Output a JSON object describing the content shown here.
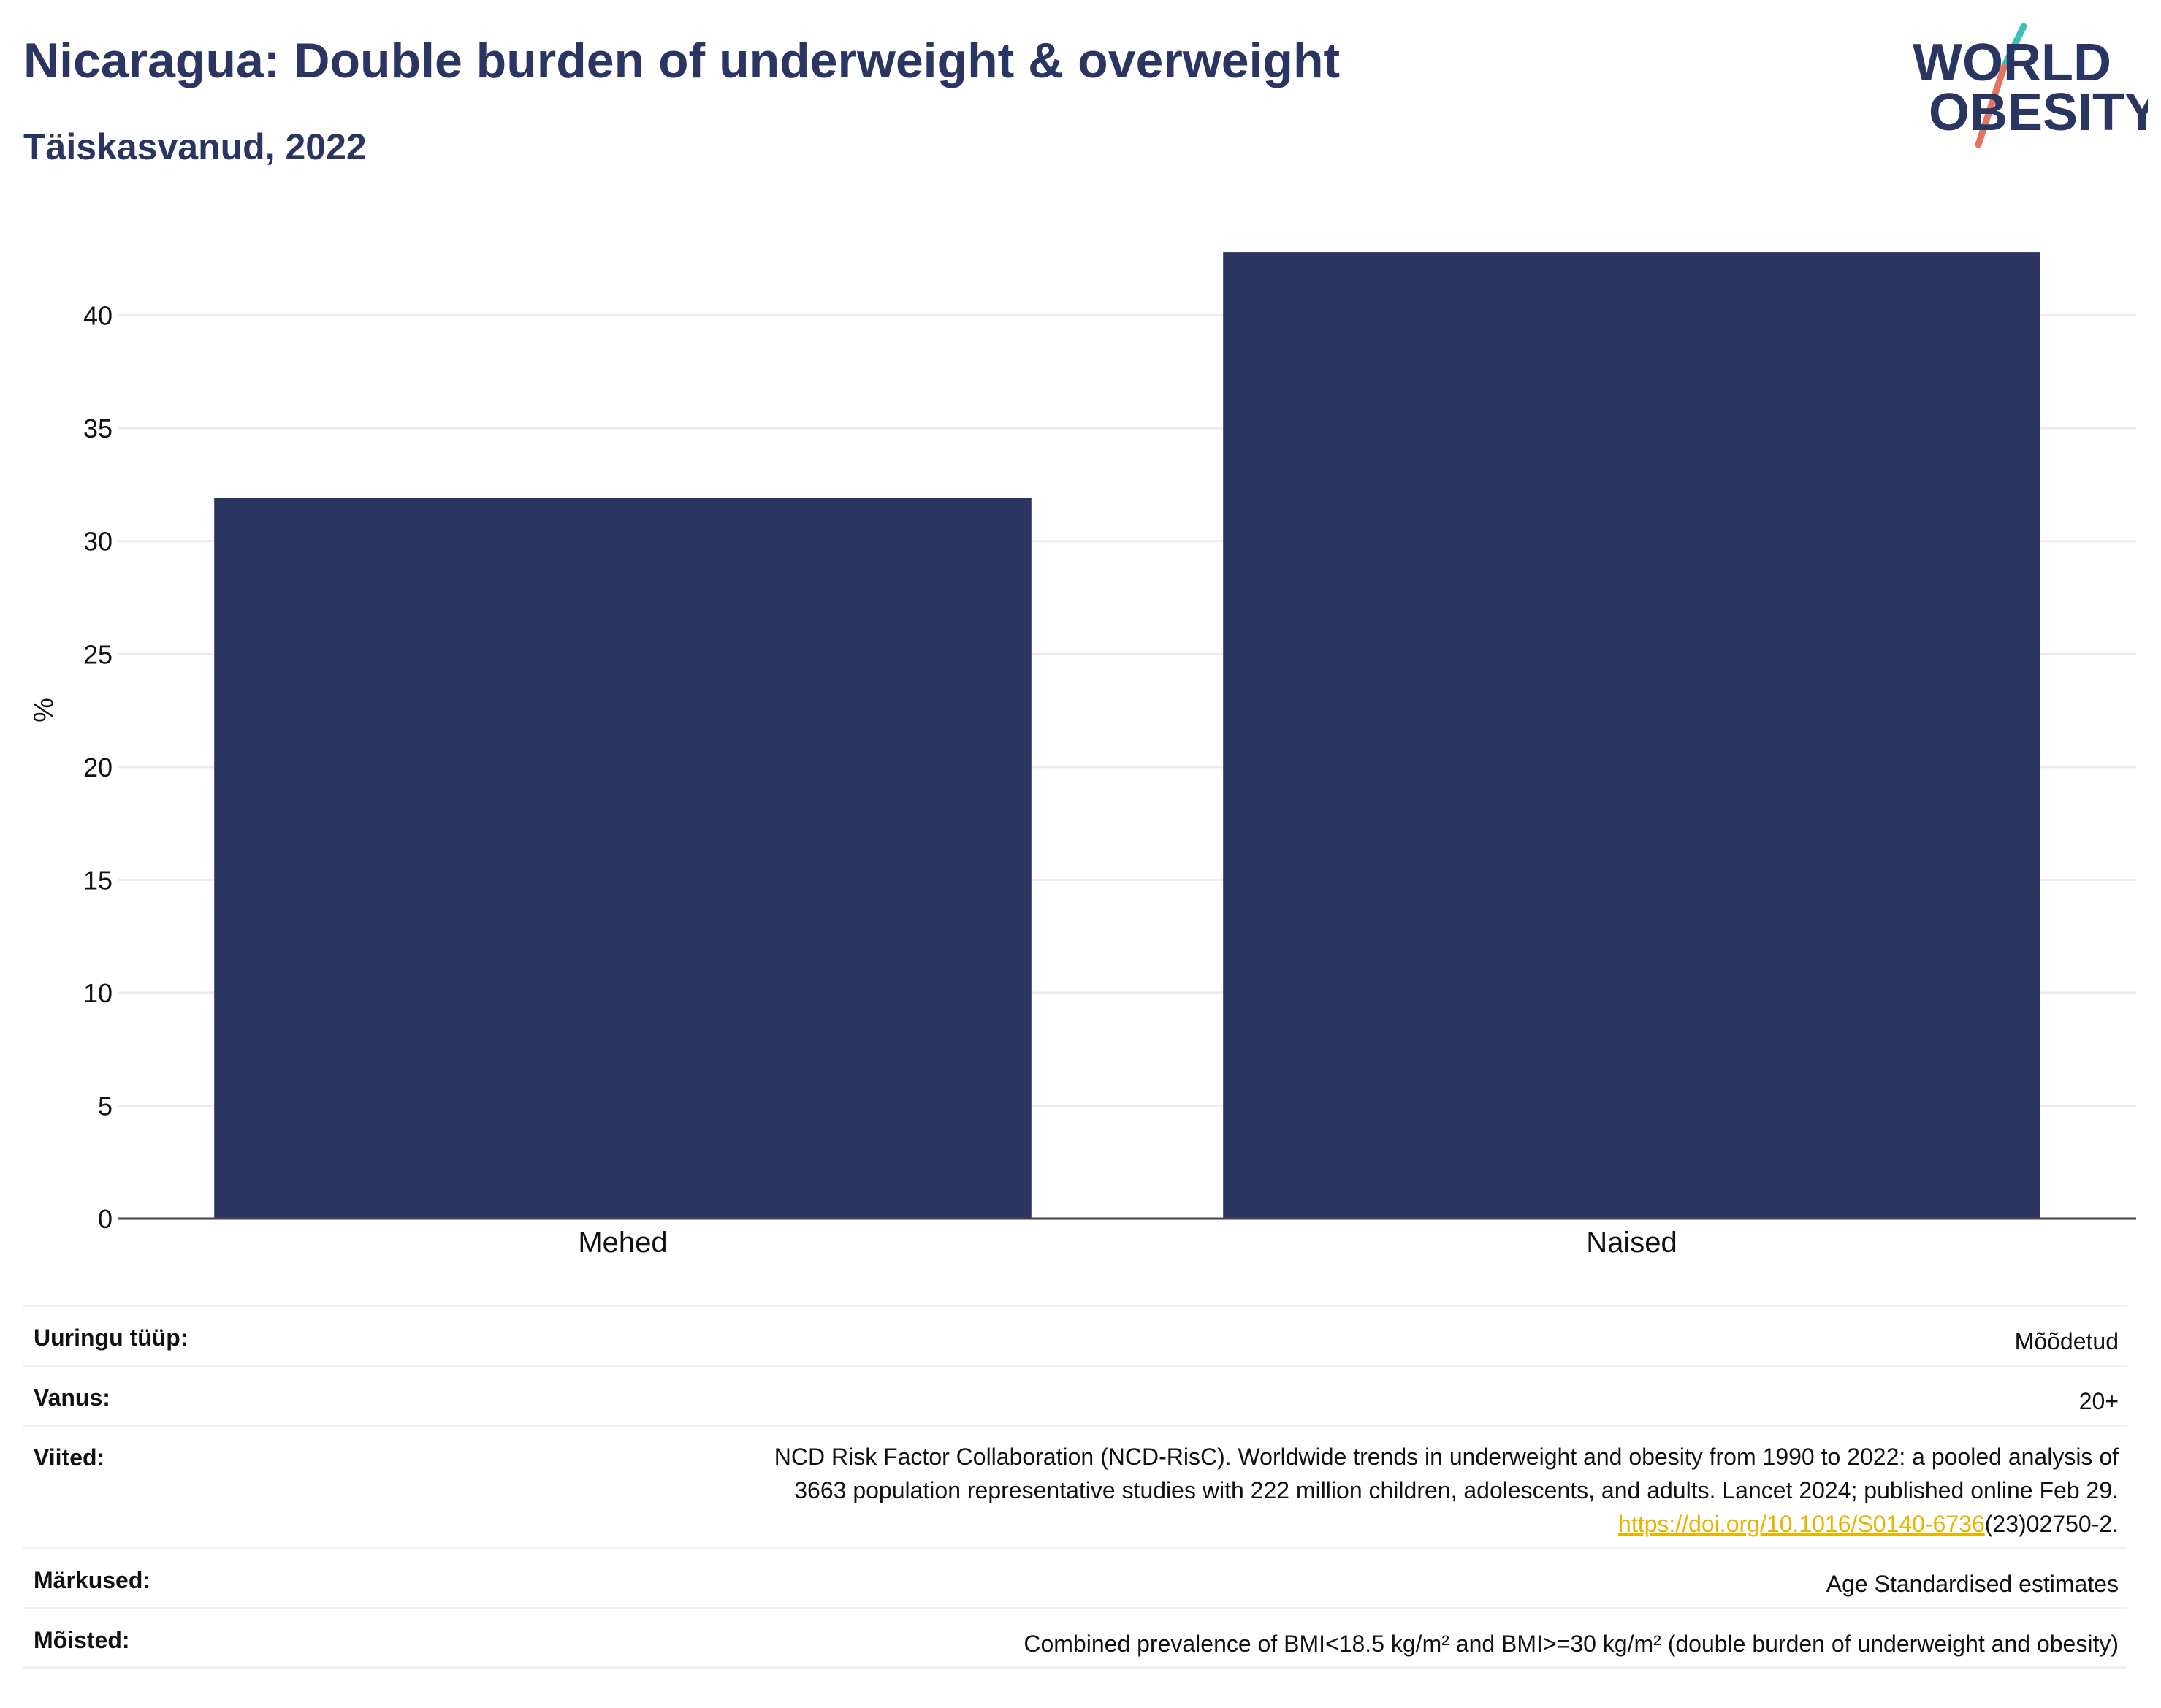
{
  "header": {
    "title": "Nicaragua: Double burden of underweight & overweight",
    "subtitle": "Täiskasvanud, 2022"
  },
  "logo": {
    "line1": "WORLD",
    "line2": "OBESITY",
    "colors": {
      "text": "#2a3661",
      "slash_top": "#3bbfb9",
      "slash_bottom": "#e4735f"
    }
  },
  "chart_data": {
    "type": "bar",
    "categories": [
      "Mehed",
      "Naised"
    ],
    "values": [
      31.9,
      42.8
    ],
    "ylabel": "%",
    "xlabel": "",
    "ylim": [
      0,
      44
    ],
    "yticks": [
      0,
      5,
      10,
      15,
      20,
      25,
      30,
      35,
      40
    ],
    "grid": true,
    "bar_color": "#2a3661"
  },
  "info": {
    "rows": [
      {
        "label": "Uuringu tüüp:",
        "value": "Mõõdetud"
      },
      {
        "label": "Vanus:",
        "value": "20+"
      },
      {
        "label": "Viited:",
        "value_lines": [
          "NCD Risk Factor Collaboration (NCD-RisC). Worldwide trends in underweight and obesity from 1990 to 2022: a pooled analysis of",
          "3663 population representative studies with 222 million children, adolescents, and adults. Lancet 2024; published online Feb 29."
        ],
        "link_text": "https://doi.org/10.1016/S0140-6736",
        "link_suffix": "(23)02750-2."
      },
      {
        "label": "Märkused:",
        "value": "Age Standardised estimates"
      },
      {
        "label": "Mõisted:",
        "value": "Combined prevalence of BMI<18.5 kg/m² and BMI>=30 kg/m² (double burden of underweight and obesity)"
      }
    ]
  }
}
